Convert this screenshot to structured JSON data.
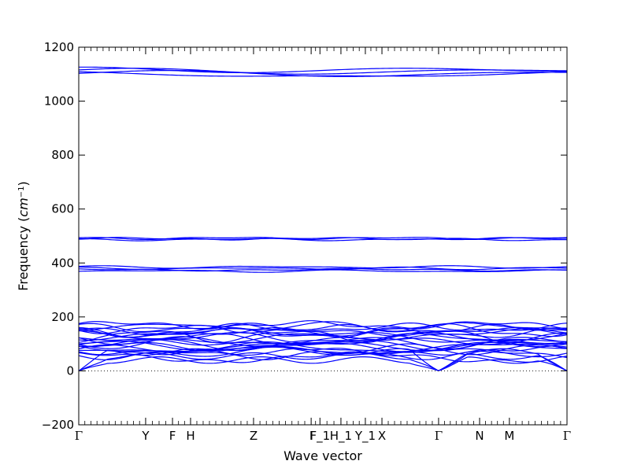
{
  "chart_data": {
    "type": "line",
    "title": "",
    "xlabel": "Wave vector",
    "ylabel_prefix": "Frequency (",
    "ylabel_unit_base": "cm",
    "ylabel_unit_sup": "−1",
    "ylabel_suffix": ")",
    "ylim": [
      -200,
      1200
    ],
    "yticks": [
      -200,
      0,
      200,
      400,
      600,
      800,
      1000,
      1200
    ],
    "ytick_labels": [
      "−200",
      "0",
      "200",
      "400",
      "600",
      "800",
      "1000",
      "1200"
    ],
    "x_range": [
      0,
      1
    ],
    "high_symmetry_points": [
      {
        "label": "Γ",
        "x": 0.0
      },
      {
        "label": "Y",
        "x": 0.137
      },
      {
        "label": "F",
        "x": 0.192
      },
      {
        "label": "H",
        "x": 0.229
      },
      {
        "label": "Z",
        "x": 0.358
      },
      {
        "label": "I",
        "x": 0.476
      },
      {
        "label": "F_1",
        "x": 0.494
      },
      {
        "label": "H_1",
        "x": 0.537
      },
      {
        "label": "Y_1",
        "x": 0.587
      },
      {
        "label": "X",
        "x": 0.621
      },
      {
        "label": "Γ",
        "x": 0.737
      },
      {
        "label": "N",
        "x": 0.821
      },
      {
        "label": "M",
        "x": 0.882
      },
      {
        "label": "Γ",
        "x": 1.0
      }
    ],
    "zero_line": true,
    "line_color": "#0000ff",
    "band_groups": [
      {
        "name": "acoustic",
        "levels": [
          0
        ],
        "count": 3
      },
      {
        "name": "low-optical",
        "levels": [
          50,
          60,
          70,
          75,
          80,
          85,
          90,
          95,
          100,
          105,
          110,
          115,
          120,
          125,
          130,
          135,
          140,
          145,
          150,
          155,
          160,
          165,
          170
        ]
      },
      {
        "name": "mid-optical-1",
        "levels": [
          370,
          375,
          380,
          385
        ]
      },
      {
        "name": "mid-optical-2",
        "levels": [
          487,
          490,
          492
        ]
      },
      {
        "name": "high-optical",
        "levels": [
          1098,
          1102,
          1110,
          1115
        ]
      }
    ]
  }
}
